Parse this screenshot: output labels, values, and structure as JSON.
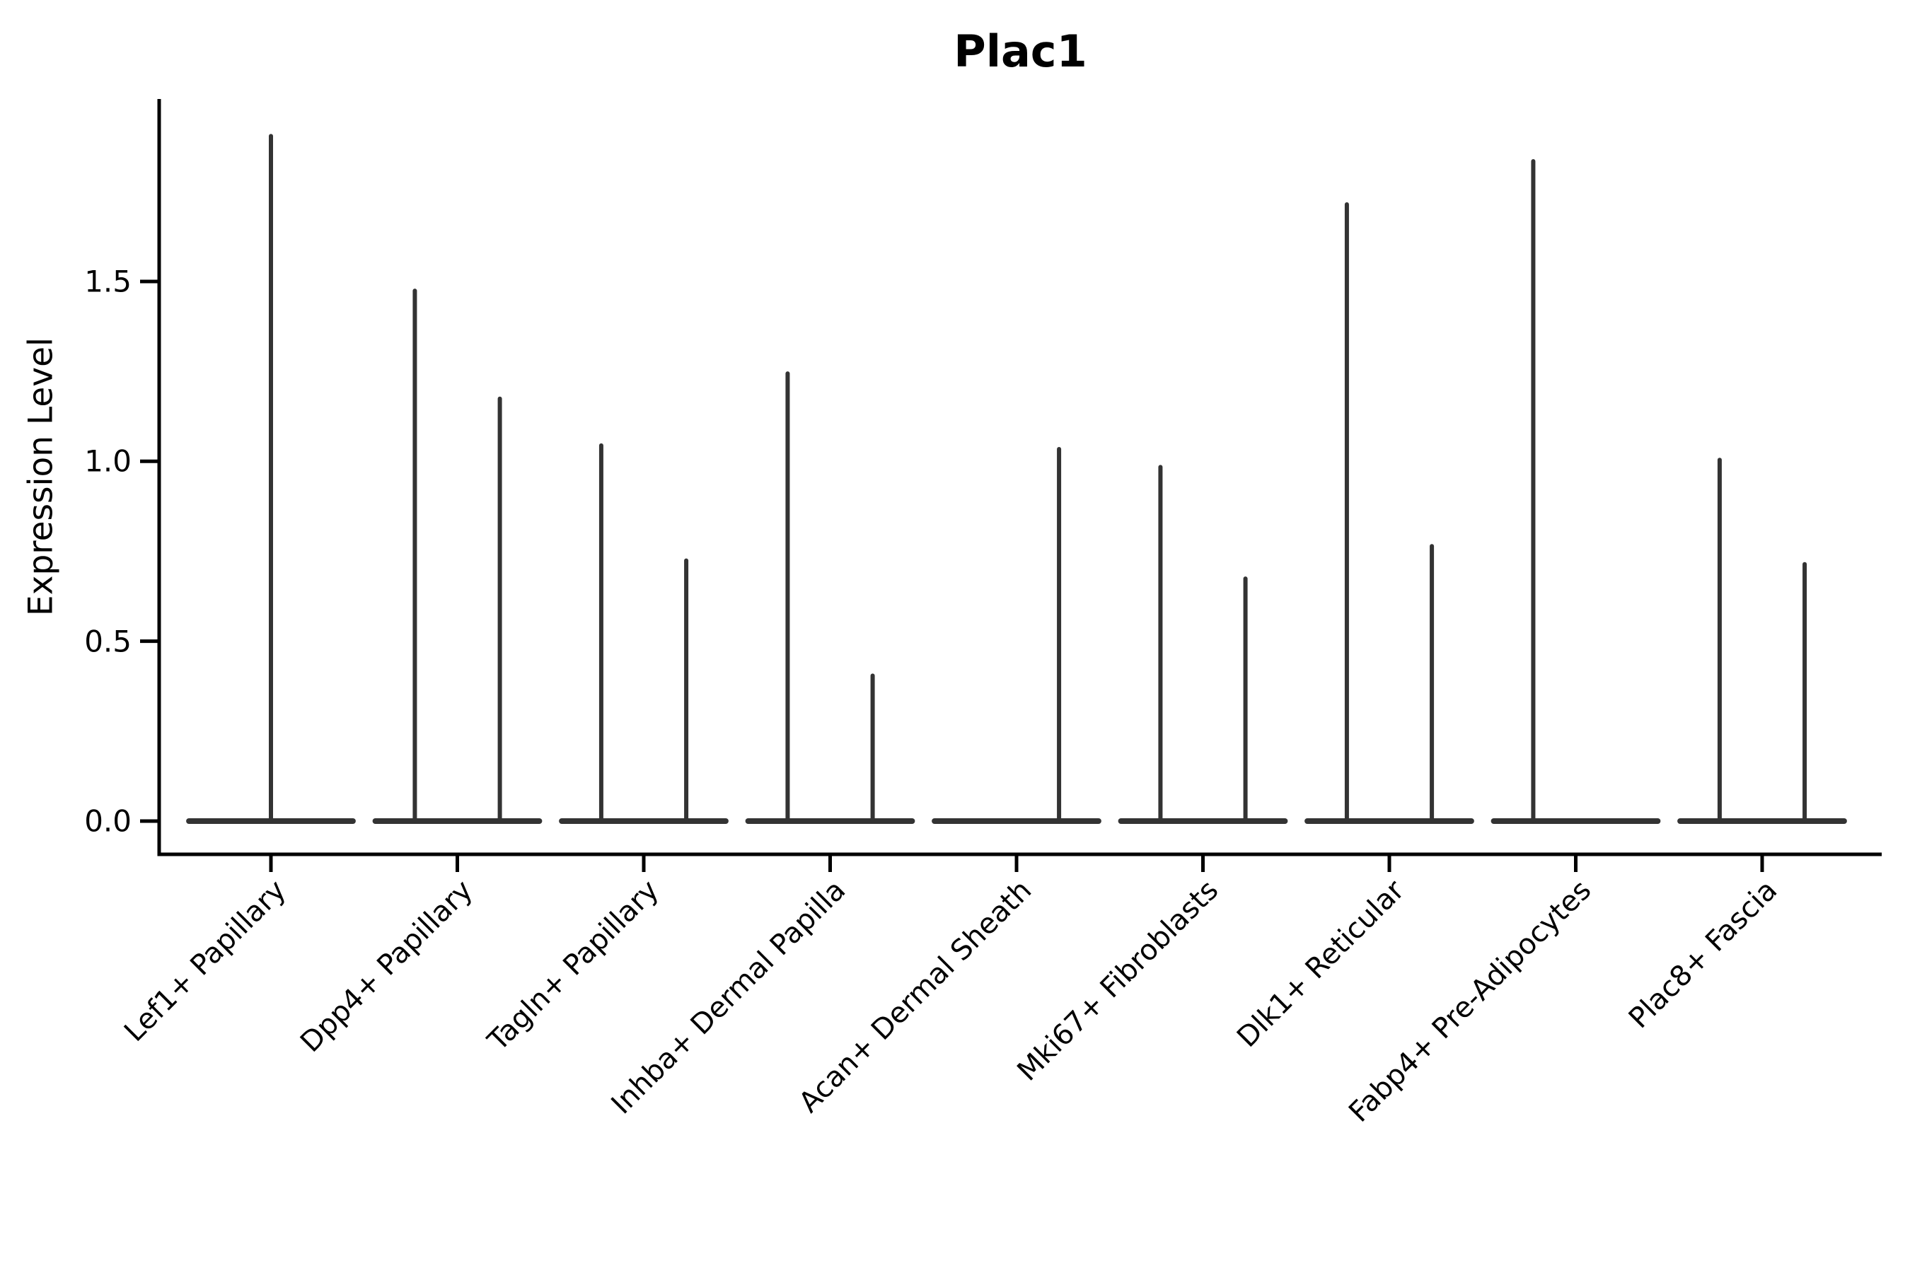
{
  "title": "Plac1",
  "ylabel": "Expression Level",
  "colors": {
    "violin": "#333333",
    "axis": "#000000",
    "text": "#000000",
    "background": "#ffffff"
  },
  "chart_data": {
    "type": "violin",
    "title": "Plac1",
    "xlabel": "",
    "ylabel": "Expression Level",
    "grid": false,
    "legend": "none",
    "ylim": [
      -0.09,
      2.01
    ],
    "y_ticks": [
      0.0,
      0.5,
      1.0,
      1.5
    ],
    "y_tick_labels": [
      "0.0",
      "0.5",
      "1.0",
      "1.5"
    ],
    "categories": [
      "Lef1+ Papillary",
      "Dpp4+ Papillary",
      "Tagln+ Papillary",
      "Inhba+ Dermal Papilla",
      "Acan+ Dermal Sheath",
      "Mki67+ Fibroblasts",
      "Dlk1+ Reticular",
      "Fabp4+ Pre-Adipocytes",
      "Plac8+ Fascia"
    ],
    "base_half_width": 0.455,
    "violins": [
      {
        "category": "Lef1+ Papillary",
        "spikes": [
          {
            "offset": 0.0,
            "max": 1.91
          }
        ]
      },
      {
        "category": "Dpp4+ Papillary",
        "spikes": [
          {
            "offset": -0.228,
            "max": 1.48
          },
          {
            "offset": 0.228,
            "max": 1.18
          }
        ]
      },
      {
        "category": "Tagln+ Papillary",
        "spikes": [
          {
            "offset": -0.228,
            "max": 1.05
          },
          {
            "offset": 0.228,
            "max": 0.73
          }
        ]
      },
      {
        "category": "Inhba+ Dermal Papilla",
        "spikes": [
          {
            "offset": -0.228,
            "max": 1.25
          },
          {
            "offset": 0.228,
            "max": 0.41
          }
        ]
      },
      {
        "category": "Acan+ Dermal Sheath",
        "spikes": [
          {
            "offset": 0.228,
            "max": 1.04
          }
        ]
      },
      {
        "category": "Mki67+ Fibroblasts",
        "spikes": [
          {
            "offset": -0.228,
            "max": 0.99
          },
          {
            "offset": 0.228,
            "max": 0.68
          }
        ]
      },
      {
        "category": "Dlk1+ Reticular",
        "spikes": [
          {
            "offset": -0.228,
            "max": 1.72
          },
          {
            "offset": 0.228,
            "max": 0.77
          }
        ]
      },
      {
        "category": "Fabp4+ Pre-Adipocytes",
        "spikes": [
          {
            "offset": -0.228,
            "max": 1.84
          }
        ]
      },
      {
        "category": "Plac8+ Fascia",
        "spikes": [
          {
            "offset": -0.228,
            "max": 1.01
          },
          {
            "offset": 0.228,
            "max": 0.72
          }
        ]
      }
    ]
  }
}
